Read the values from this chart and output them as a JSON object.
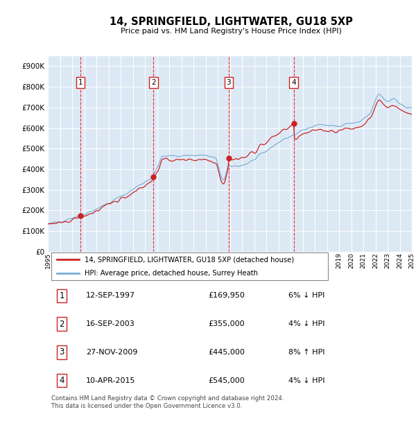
{
  "title": "14, SPRINGFIELD, LIGHTWATER, GU18 5XP",
  "subtitle": "Price paid vs. HM Land Registry's House Price Index (HPI)",
  "plot_bg_color": "#dce9f5",
  "fig_bg_color": "#ffffff",
  "grid_color": "#ffffff",
  "hpi_color": "#7aadd4",
  "property_color": "#cc2222",
  "purchase_dates": [
    1997.7,
    2003.71,
    2009.91,
    2015.27
  ],
  "purchase_prices": [
    169950,
    355000,
    445000,
    545000
  ],
  "purchase_labels": [
    "1",
    "2",
    "3",
    "4"
  ],
  "legend_property": "14, SPRINGFIELD, LIGHTWATER, GU18 5XP (detached house)",
  "legend_hpi": "HPI: Average price, detached house, Surrey Heath",
  "table_data": [
    [
      "1",
      "12-SEP-1997",
      "£169,950",
      "6% ↓ HPI"
    ],
    [
      "2",
      "16-SEP-2003",
      "£355,000",
      "4% ↓ HPI"
    ],
    [
      "3",
      "27-NOV-2009",
      "£445,000",
      "8% ↑ HPI"
    ],
    [
      "4",
      "10-APR-2015",
      "£545,000",
      "4% ↓ HPI"
    ]
  ],
  "footnote": "Contains HM Land Registry data © Crown copyright and database right 2024.\nThis data is licensed under the Open Government Licence v3.0.",
  "ylim": [
    0,
    950000
  ],
  "yticks": [
    0,
    100000,
    200000,
    300000,
    400000,
    500000,
    600000,
    700000,
    800000,
    900000
  ],
  "ytick_labels": [
    "£0",
    "£100K",
    "£200K",
    "£300K",
    "£400K",
    "£500K",
    "£600K",
    "£700K",
    "£800K",
    "£900K"
  ],
  "start_year": 1995,
  "end_year": 2025
}
